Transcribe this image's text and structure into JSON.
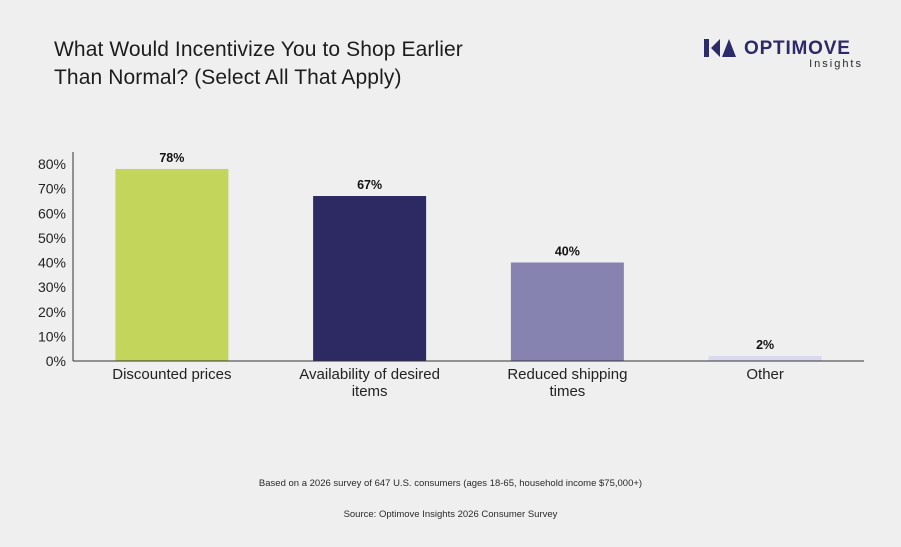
{
  "brand": {
    "name": "OPTIMOVE",
    "subtitle": "Insights",
    "color": "#2c2a68"
  },
  "footnote": "Based on a 2026 survey of 647 U.S. consumers (ages 18-65, household income $75,000+)",
  "source": "Source: Optimove Insights 2026 Consumer Survey",
  "chart_data": {
    "type": "bar",
    "title_lines": [
      "What Would Incentivize You to Shop Earlier",
      "Than Normal? (Select All That Apply)"
    ],
    "categories": [
      "Discounted prices",
      "Availability of desired items",
      "Reduced shipping times",
      "Other"
    ],
    "category_label_lines": [
      [
        "Discounted prices"
      ],
      [
        "Availability of desired",
        "items"
      ],
      [
        "Reduced shipping",
        "times"
      ],
      [
        "Other"
      ]
    ],
    "values": [
      78,
      67,
      40,
      2
    ],
    "data_labels": [
      "78%",
      "67%",
      "40%",
      "2%"
    ],
    "colors": [
      "#c3d65b",
      "#2d2a63",
      "#8783b0",
      "#d9d8ef"
    ],
    "ylim": [
      0,
      80
    ],
    "yticks": [
      "0%",
      "10%",
      "20%",
      "30%",
      "40%",
      "50%",
      "60%",
      "70%",
      "80%"
    ],
    "ytick_values": [
      0,
      10,
      20,
      30,
      40,
      50,
      60,
      70,
      80
    ],
    "grid": false,
    "legend": "none"
  }
}
